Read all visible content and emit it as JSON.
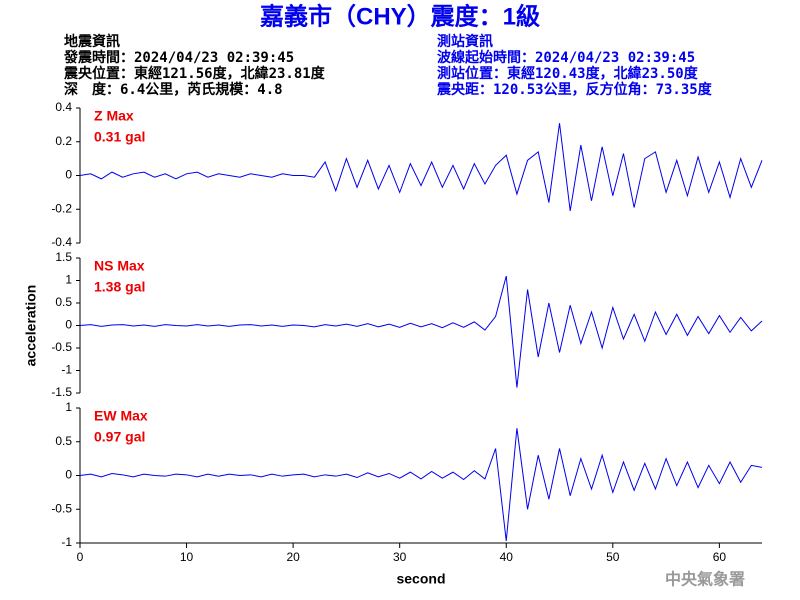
{
  "title": "嘉義市（CHY）震度：1級",
  "header": {
    "left": [
      "地震資訊",
      "發震時間：2024/04/23 02:39:45",
      "震央位置：東經121.56度，北緯23.81度",
      "深　度：6.4公里，芮氏規模：4.8"
    ],
    "right": [
      "測站資訊",
      "波線起始時間：2024/04/23 02:39:45",
      "測站位置：東經120.43度，北緯23.50度",
      "震央距：120.53公里，反方位角：73.35度"
    ]
  },
  "footer": "中央氣象署",
  "chart_data": [
    {
      "type": "line",
      "label": "Z Max",
      "max_label": "0.31 gal",
      "color": "#0000ee",
      "x": [
        0,
        1,
        2,
        3,
        4,
        5,
        6,
        7,
        8,
        9,
        10,
        11,
        12,
        13,
        14,
        15,
        16,
        17,
        18,
        19,
        20,
        21,
        22,
        23,
        24,
        25,
        26,
        27,
        28,
        29,
        30,
        31,
        32,
        33,
        34,
        35,
        36,
        37,
        38,
        39,
        40,
        41,
        42,
        43,
        44,
        45,
        46,
        47,
        48,
        49,
        50,
        51,
        52,
        53,
        54,
        55,
        56,
        57,
        58,
        59,
        60,
        61,
        62,
        63,
        64
      ],
      "values": [
        0,
        0.01,
        -0.02,
        0.02,
        -0.01,
        0.01,
        0.02,
        -0.01,
        0.01,
        -0.02,
        0.01,
        0.02,
        -0.01,
        0.01,
        0,
        -0.01,
        0.01,
        0,
        -0.01,
        0.01,
        0,
        0,
        -0.01,
        0.08,
        -0.09,
        0.1,
        -0.07,
        0.09,
        -0.08,
        0.06,
        -0.1,
        0.07,
        -0.06,
        0.08,
        -0.07,
        0.06,
        -0.08,
        0.07,
        -0.05,
        0.06,
        0.12,
        -0.11,
        0.09,
        0.14,
        -0.16,
        0.31,
        -0.21,
        0.18,
        -0.15,
        0.17,
        -0.12,
        0.13,
        -0.19,
        0.1,
        0.14,
        -0.1,
        0.09,
        -0.12,
        0.11,
        -0.1,
        0.08,
        -0.13,
        0.1,
        -0.07,
        0.09
      ],
      "xlim": [
        0,
        64
      ],
      "ylim": [
        -0.4,
        0.4
      ],
      "yticks": [
        -0.4,
        -0.2,
        0,
        0.2,
        0.4
      ]
    },
    {
      "type": "line",
      "label": "NS Max",
      "max_label": "1.38 gal",
      "color": "#0000ee",
      "ylabel": "acceleration",
      "x": [
        0,
        1,
        2,
        3,
        4,
        5,
        6,
        7,
        8,
        9,
        10,
        11,
        12,
        13,
        14,
        15,
        16,
        17,
        18,
        19,
        20,
        21,
        22,
        23,
        24,
        25,
        26,
        27,
        28,
        29,
        30,
        31,
        32,
        33,
        34,
        35,
        36,
        37,
        38,
        39,
        40,
        41,
        42,
        43,
        44,
        45,
        46,
        47,
        48,
        49,
        50,
        51,
        52,
        53,
        54,
        55,
        56,
        57,
        58,
        59,
        60,
        61,
        62,
        63,
        64
      ],
      "values": [
        0,
        0.02,
        -0.02,
        0.01,
        0.02,
        -0.01,
        0.01,
        -0.02,
        0.02,
        0,
        -0.01,
        0.02,
        -0.01,
        0.01,
        -0.02,
        0.01,
        0.02,
        -0.01,
        0.01,
        -0.02,
        0.01,
        0,
        -0.03,
        0.02,
        -0.01,
        0.03,
        -0.02,
        0.04,
        -0.03,
        0.03,
        -0.04,
        0.05,
        -0.03,
        0.04,
        -0.05,
        0.06,
        -0.04,
        0.08,
        -0.1,
        0.2,
        1.1,
        -1.38,
        0.8,
        -0.7,
        0.5,
        -0.6,
        0.45,
        -0.4,
        0.3,
        -0.5,
        0.4,
        -0.3,
        0.25,
        -0.35,
        0.3,
        -0.2,
        0.25,
        -0.22,
        0.2,
        -0.18,
        0.22,
        -0.15,
        0.18,
        -0.12,
        0.1
      ],
      "xlim": [
        0,
        64
      ],
      "ylim": [
        -1.5,
        1.5
      ],
      "yticks": [
        -1.5,
        -1,
        -0.5,
        0,
        0.5,
        1,
        1.5
      ]
    },
    {
      "type": "line",
      "label": "EW Max",
      "max_label": "0.97 gal",
      "color": "#0000ee",
      "xlabel": "second",
      "x": [
        0,
        1,
        2,
        3,
        4,
        5,
        6,
        7,
        8,
        9,
        10,
        11,
        12,
        13,
        14,
        15,
        16,
        17,
        18,
        19,
        20,
        21,
        22,
        23,
        24,
        25,
        26,
        27,
        28,
        29,
        30,
        31,
        32,
        33,
        34,
        35,
        36,
        37,
        38,
        39,
        40,
        41,
        42,
        43,
        44,
        45,
        46,
        47,
        48,
        49,
        50,
        51,
        52,
        53,
        54,
        55,
        56,
        57,
        58,
        59,
        60,
        61,
        62,
        63,
        64
      ],
      "values": [
        0,
        0.02,
        -0.02,
        0.03,
        0.01,
        -0.02,
        0.02,
        0,
        -0.01,
        0.02,
        0.01,
        -0.02,
        0.02,
        -0.01,
        0.02,
        0,
        0.01,
        -0.02,
        0.02,
        -0.01,
        0.01,
        0.02,
        -0.02,
        0.01,
        -0.01,
        0.02,
        -0.03,
        0.04,
        -0.02,
        0.03,
        -0.04,
        0.05,
        -0.05,
        0.06,
        -0.04,
        0.05,
        -0.06,
        0.07,
        -0.05,
        0.4,
        -0.97,
        0.7,
        -0.5,
        0.3,
        -0.35,
        0.4,
        -0.3,
        0.25,
        -0.2,
        0.3,
        -0.25,
        0.2,
        -0.22,
        0.18,
        -0.2,
        0.25,
        -0.15,
        0.2,
        -0.18,
        0.15,
        -0.12,
        0.2,
        -0.1,
        0.15,
        0.12
      ],
      "xlim": [
        0,
        64
      ],
      "ylim": [
        -1,
        1
      ],
      "yticks": [
        -1,
        -0.5,
        0,
        0.5,
        1
      ],
      "xticks": [
        0,
        10,
        20,
        30,
        40,
        50,
        60
      ]
    }
  ]
}
